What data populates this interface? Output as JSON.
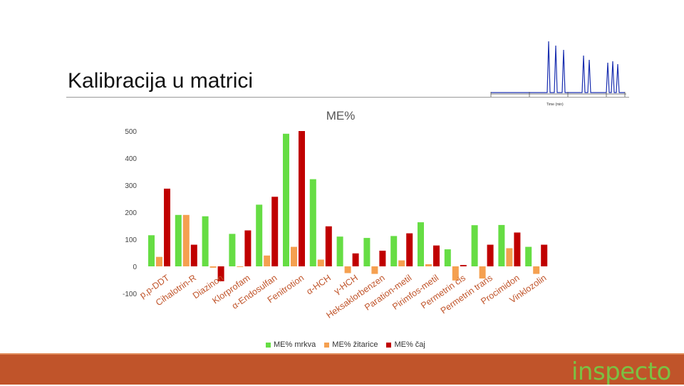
{
  "slide": {
    "title": "Kalibracija u matrici",
    "logo_text": "inspecto"
  },
  "chromatogram": {
    "axis_label": "Time (min)",
    "color": "#1a2fb0"
  },
  "colors": {
    "mrkva": "#66dd44",
    "zitarice": "#f5a050",
    "caj": "#c00000",
    "footer": "#c0542a",
    "logo": "#7bc143"
  },
  "chart_data": {
    "type": "bar",
    "title": "ME%",
    "ylim": [
      -100,
      500
    ],
    "yticks": [
      500,
      400,
      300,
      200,
      100,
      0,
      -100
    ],
    "grid": false,
    "legend_position": "bottom",
    "categories": [
      "p,p-DDT",
      "Cihalotrin-R",
      "Diazinon",
      "Klorprofam",
      "α-Endosulfan",
      "Fenitrotion",
      "α-HCH",
      "γ-HCH",
      "Heksaklorbenzen",
      "Paration-metil",
      "Pirimfos-metil",
      "Permetrin cis",
      "Permetrin trans",
      "Procimidon",
      "Vinklozolin"
    ],
    "series": [
      {
        "name": "ME% mrkva",
        "values": [
          115,
          190,
          185,
          120,
          228,
          490,
          322,
          110,
          105,
          112,
          163,
          63,
          152,
          153,
          72
        ]
      },
      {
        "name": "ME% žitarice",
        "values": [
          35,
          190,
          -5,
          0,
          40,
          72,
          25,
          -25,
          -28,
          22,
          8,
          -52,
          -45,
          67,
          -28
        ]
      },
      {
        "name": "ME% čaj",
        "values": [
          287,
          80,
          -55,
          133,
          257,
          500,
          148,
          48,
          58,
          122,
          77,
          5,
          80,
          125,
          80
        ]
      }
    ]
  }
}
